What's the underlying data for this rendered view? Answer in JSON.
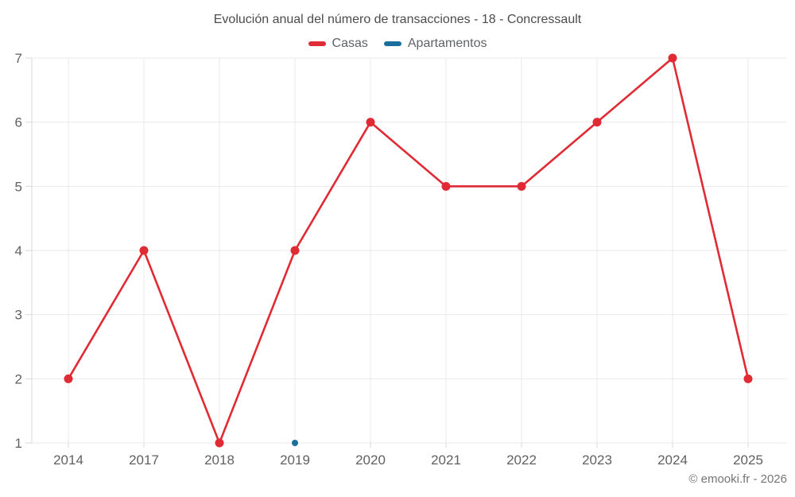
{
  "title": "Evolución anual del número de transacciones - 18 - Concressault",
  "footer": "© emooki.fr - 2026",
  "colors": {
    "casas": "#e02b35",
    "apartamentos": "#1a6e9e",
    "grid": "#e9e9e9",
    "axis": "#d9d9d9",
    "title_text": "#4c4c4c",
    "axis_text": "#616161",
    "footer_text": "#757575"
  },
  "chart_data": {
    "type": "line",
    "title": "Evolución anual del número de transacciones - 18 - Concressault",
    "categories": [
      "2014",
      "2017",
      "2018",
      "2019",
      "2020",
      "2021",
      "2022",
      "2023",
      "2024",
      "2025"
    ],
    "series": [
      {
        "name": "Casas",
        "color": "#e02b35",
        "values": [
          2,
          4,
          1,
          4,
          6,
          5,
          5,
          6,
          7,
          2
        ]
      },
      {
        "name": "Apartamentos",
        "color": "#1a6e9e",
        "values": [
          null,
          null,
          null,
          1,
          null,
          null,
          null,
          null,
          null,
          null
        ]
      }
    ],
    "xlabel": "",
    "ylabel": "",
    "ylim": [
      1,
      7
    ],
    "yticks": [
      1,
      2,
      3,
      4,
      5,
      6,
      7
    ],
    "grid": true,
    "legend_position": "top"
  }
}
